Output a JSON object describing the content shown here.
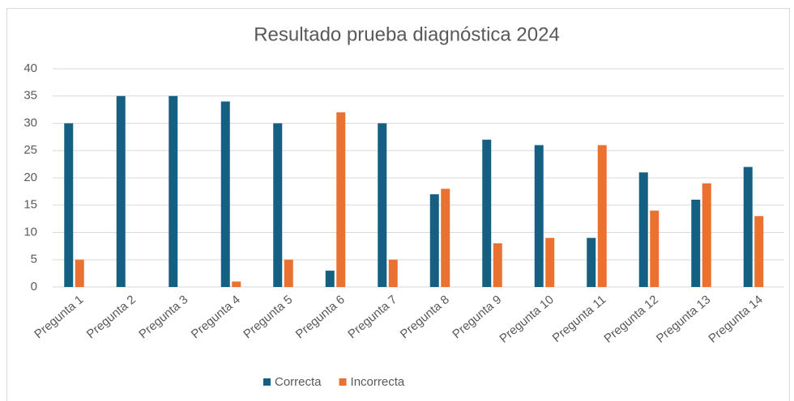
{
  "chart_data": {
    "type": "bar",
    "title": "Resultado prueba diagnóstica 2024",
    "categories": [
      "Pregunta 1",
      "Pregunta 2",
      "Pregunta 3",
      "Pregunta 4",
      "Pregunta 5",
      "Pregunta 6",
      "Pregunta 7",
      "Pregunta 8",
      "Pregunta 9",
      "Pregunta 10",
      "Pregunta 11",
      "Pregunta 12",
      "Pregunta 13",
      "Pregunta 14"
    ],
    "series": [
      {
        "name": "Correcta",
        "color": "#156082",
        "values": [
          30,
          35,
          35,
          34,
          30,
          3,
          30,
          17,
          27,
          26,
          9,
          21,
          16,
          22
        ]
      },
      {
        "name": "Incorrecta",
        "color": "#e97132",
        "values": [
          5,
          0,
          0,
          1,
          5,
          32,
          5,
          18,
          8,
          9,
          26,
          14,
          19,
          13
        ]
      }
    ],
    "ylim": [
      0,
      40
    ],
    "yticks": [
      0,
      5,
      10,
      15,
      20,
      25,
      30,
      35,
      40
    ],
    "grid": true,
    "legend": "bottom"
  }
}
